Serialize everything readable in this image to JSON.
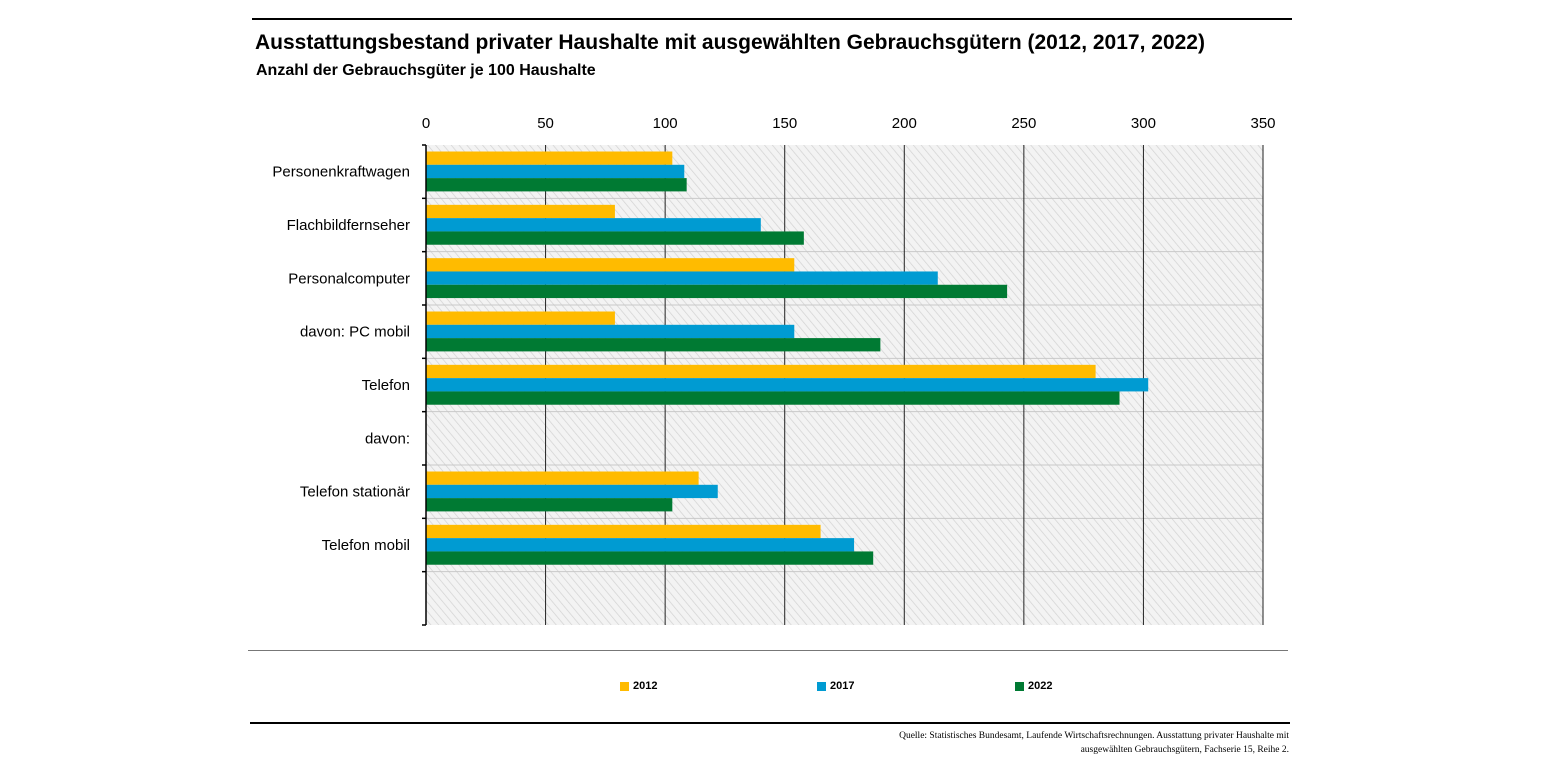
{
  "header": {
    "title": "Ausstattungsbestand privater Haushalte mit ausgewählten Gebrauchsgütern (2012, 2017, 2022)",
    "subtitle": "Anzahl der Gebrauchsgüter je 100 Haushalte"
  },
  "colors": {
    "2012": "#FFBB00",
    "2017": "#009BD2",
    "2022": "#007A33"
  },
  "chart_data": {
    "type": "bar",
    "orientation": "horizontal",
    "title": "Ausstattungsbestand privater Haushalte mit ausgewählten Gebrauchsgütern (2012, 2017, 2022)",
    "subtitle": "Anzahl der Gebrauchsgüter je 100 Haushalte",
    "categories": [
      "Personenkraftwagen",
      "Flachbildfernseher",
      "Personalcomputer",
      "davon: PC mobil",
      "Telefon",
      "davon:",
      "Telefon stationär",
      "Telefon mobil"
    ],
    "series": [
      {
        "name": "2012",
        "values": [
          103,
          79,
          154,
          79,
          280,
          null,
          114,
          165
        ]
      },
      {
        "name": "2017",
        "values": [
          108,
          140,
          214,
          154,
          302,
          null,
          122,
          179
        ]
      },
      {
        "name": "2022",
        "values": [
          109,
          158,
          243,
          190,
          290,
          null,
          103,
          187
        ]
      }
    ],
    "xlim": [
      0,
      350
    ],
    "ticks": [
      0,
      50,
      100,
      150,
      200,
      250,
      300,
      350
    ],
    "tick_labels": [
      "0",
      "50",
      "100",
      "150",
      "200",
      "250",
      "300",
      "350"
    ],
    "xlabel": "",
    "ylabel": "",
    "grid": true,
    "legend_position": "bottom"
  },
  "legend": {
    "items": [
      "2012",
      "2017",
      "2022"
    ]
  },
  "source": {
    "line1": "Quelle: Statistisches Bundesamt, Laufende Wirtschaftsrechnungen. Ausstattung privater Haushalte mit",
    "line2": "ausgewählten Gebrauchsgütern, Fachserie 15, Reihe 2."
  }
}
